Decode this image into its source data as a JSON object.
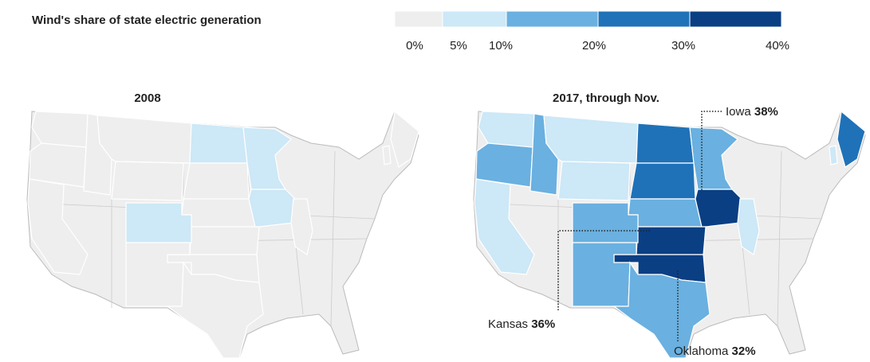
{
  "legend": {
    "title": "Wind's share of state electric generation",
    "ticks": [
      {
        "value": 0,
        "label": "0%"
      },
      {
        "value": 5,
        "label": "5%"
      },
      {
        "value": 10,
        "label": "10%"
      },
      {
        "value": 20,
        "label": "20%"
      },
      {
        "value": 30,
        "label": "30%"
      },
      {
        "value": 40,
        "label": "40%"
      }
    ],
    "colors": [
      "#eeeeee",
      "#cde8f7",
      "#6ab0e0",
      "#1f72b8",
      "#0a3f84"
    ]
  },
  "maps": [
    {
      "title": "2008",
      "regions": [
        {
          "value": 2
        },
        {
          "value": 2
        },
        {
          "value": 2
        },
        {
          "value": 2
        },
        {
          "value": 2
        },
        {
          "value": 2
        },
        {
          "value": 7
        },
        {
          "value": 2
        },
        {
          "value": 7
        },
        {
          "value": 2
        },
        {
          "value": 7
        },
        {
          "value": 2
        },
        {
          "value": 2
        },
        {
          "value": 7
        },
        {
          "value": 2
        },
        {
          "value": 2
        },
        {
          "value": 2
        },
        {
          "value": 2
        },
        {
          "value": 2
        }
      ]
    },
    {
      "title": "2017, through Nov.",
      "regions": [
        {
          "value": 7
        },
        {
          "value": 12
        },
        {
          "value": 7
        },
        {
          "value": 15
        },
        {
          "value": 8
        },
        {
          "value": 9
        },
        {
          "value": 25
        },
        {
          "value": 28
        },
        {
          "value": 18
        },
        {
          "value": 15
        },
        {
          "name": "Iowa",
          "value": 38,
          "value_label": "38%"
        },
        {
          "name": "Kansas",
          "value": 36,
          "value_label": "36%"
        },
        {
          "name": "Oklahoma",
          "value": 32,
          "value_label": "32%"
        },
        {
          "value": 17
        },
        {
          "value": 12
        },
        {
          "value": 16
        },
        {
          "value": 6
        },
        {
          "value": 22
        },
        {
          "value": 7
        }
      ]
    }
  ]
}
